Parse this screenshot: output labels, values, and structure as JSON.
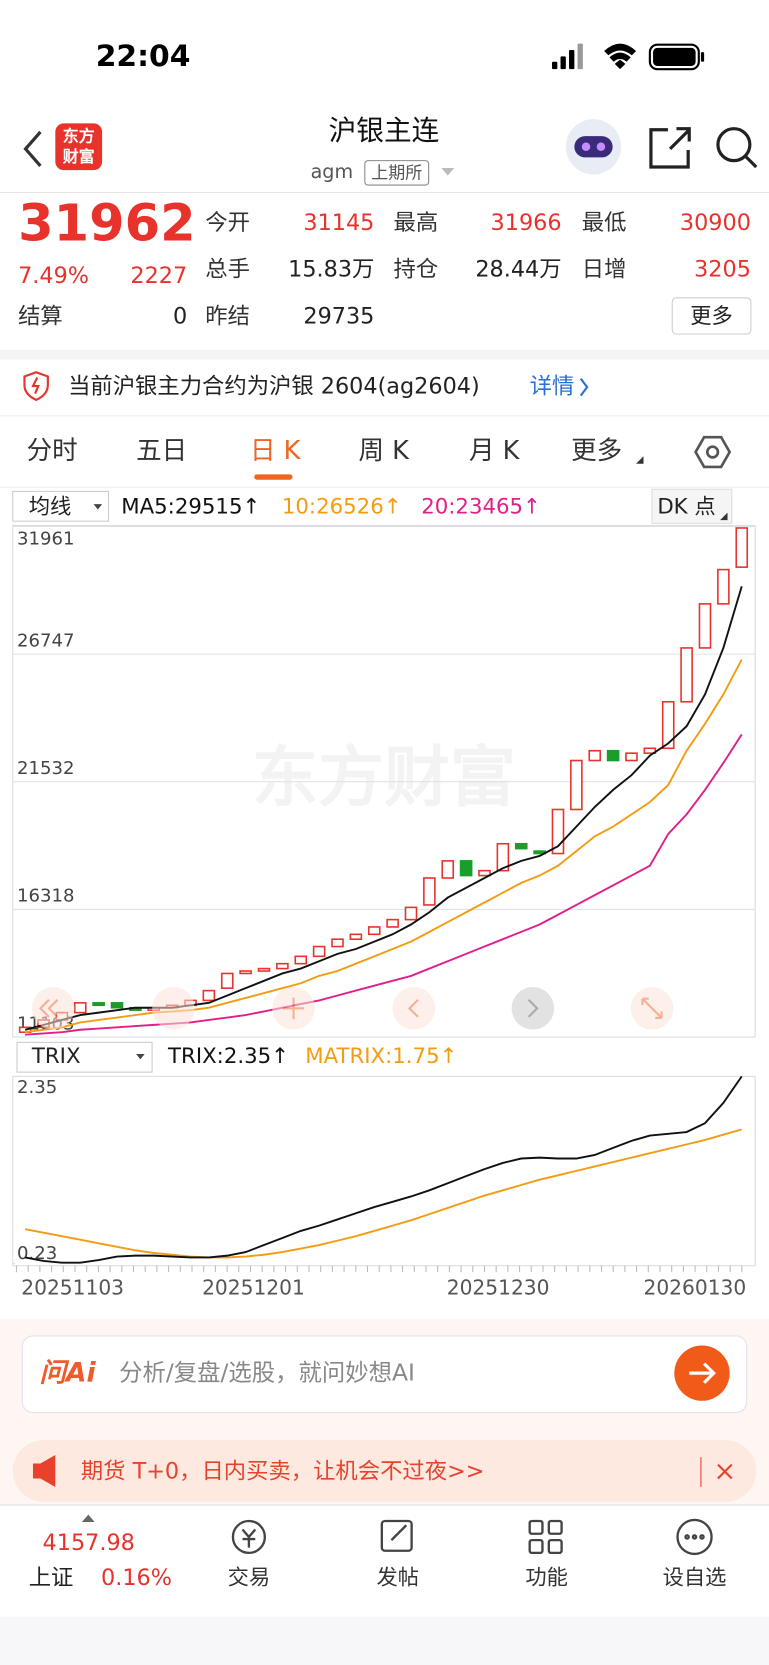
{
  "status": {
    "time": "22:04"
  },
  "header": {
    "logo_top": "东方",
    "logo_bottom": "财富",
    "title": "沪银主连",
    "code": "agm",
    "exchange": "上期所"
  },
  "quote": {
    "price": "31962",
    "change_pct": "7.49%",
    "change": "2227",
    "fields": [
      {
        "label": "今开",
        "value": "31145"
      },
      {
        "label": "最高",
        "value": "31966"
      },
      {
        "label": "最低",
        "value": "30900"
      },
      {
        "label": "总手",
        "value": "15.83万"
      },
      {
        "label": "持仓",
        "value": "28.44万"
      },
      {
        "label": "日增",
        "value": "3205"
      },
      {
        "label": "结算",
        "value": "0"
      },
      {
        "label": "昨结",
        "value": "29735"
      }
    ],
    "more": "更多"
  },
  "notice": {
    "text": "当前沪银主力合约为沪银 2604(ag2604)",
    "link": "详情"
  },
  "tabs": {
    "items": [
      "分时",
      "五日",
      "日 K",
      "周 K",
      "月 K",
      "更多"
    ],
    "active": 2
  },
  "indicator": {
    "selector": "均线",
    "ma5": "MA5:29515↑",
    "ma10": "10:26526↑",
    "ma20": "20:23465↑",
    "dk": "DK 点"
  },
  "watermark": "东方财富",
  "kline": {
    "ylim": [
      11103,
      31961
    ],
    "yticks": [
      31961,
      26747,
      21532,
      16318,
      11103
    ],
    "open": [
      11300,
      11500,
      11800,
      12100,
      12500,
      12500,
      12300,
      12200,
      12300,
      12400,
      12600,
      13100,
      13700,
      13800,
      13900,
      14100,
      14400,
      14800,
      15100,
      15300,
      15600,
      15900,
      16500,
      17600,
      18300,
      17700,
      17900,
      19000,
      18700,
      18600,
      20400,
      22400,
      22800,
      22400,
      22700,
      22900,
      24800,
      27000,
      28800,
      30300
    ],
    "close": [
      11500,
      11800,
      12100,
      12500,
      12400,
      12300,
      12200,
      12300,
      12400,
      12600,
      13000,
      13700,
      13800,
      13900,
      14100,
      14400,
      14800,
      15100,
      15300,
      15600,
      15900,
      16400,
      17600,
      18300,
      17700,
      17900,
      19000,
      18800,
      18600,
      20400,
      22400,
      22800,
      22400,
      22700,
      22900,
      24800,
      27000,
      28800,
      30200,
      31900
    ],
    "ma5": [
      11400,
      11600,
      11800,
      12000,
      12100,
      12200,
      12300,
      12300,
      12300,
      12400,
      12500,
      12800,
      13100,
      13400,
      13700,
      13900,
      14200,
      14500,
      14700,
      15000,
      15300,
      15700,
      16200,
      16800,
      17200,
      17600,
      18000,
      18300,
      18500,
      18900,
      19700,
      20500,
      21200,
      21800,
      22600,
      23100,
      23800,
      25100,
      27000,
      29515
    ],
    "ma10": [
      11300,
      11400,
      11500,
      11700,
      11800,
      11900,
      12000,
      12100,
      12150,
      12200,
      12300,
      12500,
      12700,
      12900,
      13100,
      13300,
      13600,
      13800,
      14100,
      14400,
      14700,
      15000,
      15400,
      15800,
      16200,
      16600,
      17000,
      17400,
      17700,
      18100,
      18700,
      19300,
      19700,
      20200,
      20700,
      21400,
      22800,
      23900,
      25100,
      26526
    ],
    "ma20": [
      11200,
      11250,
      11300,
      11400,
      11450,
      11500,
      11550,
      11600,
      11650,
      11700,
      11800,
      11900,
      12000,
      12150,
      12300,
      12450,
      12600,
      12800,
      13000,
      13200,
      13400,
      13600,
      13900,
      14200,
      14500,
      14800,
      15100,
      15400,
      15700,
      16100,
      16500,
      16900,
      17300,
      17700,
      18100,
      19400,
      20200,
      21200,
      22300,
      23465
    ]
  },
  "trix": {
    "selector": "TRIX",
    "trix_label": "TRIX:2.35↑",
    "matrix_label": "MATRIX:1.75↑",
    "ylim": [
      0.23,
      2.35
    ],
    "yticks": [
      2.35,
      0.23
    ],
    "trix": [
      0.3,
      0.26,
      0.24,
      0.24,
      0.27,
      0.31,
      0.32,
      0.32,
      0.31,
      0.3,
      0.3,
      0.32,
      0.36,
      0.44,
      0.52,
      0.6,
      0.66,
      0.73,
      0.8,
      0.87,
      0.93,
      0.99,
      1.06,
      1.14,
      1.22,
      1.3,
      1.37,
      1.42,
      1.43,
      1.42,
      1.42,
      1.46,
      1.54,
      1.62,
      1.68,
      1.7,
      1.72,
      1.82,
      2.05,
      2.35
    ],
    "matrix": [
      0.62,
      0.58,
      0.54,
      0.5,
      0.46,
      0.42,
      0.38,
      0.35,
      0.33,
      0.31,
      0.3,
      0.3,
      0.31,
      0.33,
      0.36,
      0.4,
      0.44,
      0.49,
      0.54,
      0.6,
      0.66,
      0.72,
      0.79,
      0.86,
      0.93,
      1.0,
      1.06,
      1.12,
      1.18,
      1.23,
      1.28,
      1.33,
      1.38,
      1.43,
      1.48,
      1.53,
      1.58,
      1.63,
      1.69,
      1.75
    ]
  },
  "dates": [
    "20251103",
    "20251201",
    "20251230",
    "20260130"
  ],
  "ai": {
    "brand": "问Ai",
    "placeholder": "分析/复盘/选股，就问妙想AI"
  },
  "banner": {
    "text": "期货 T+0，日内买卖，让机会不过夜>>"
  },
  "bottom_nav": {
    "index_value": "4157.98",
    "index_name": "上证",
    "index_pct": "0.16%",
    "items": [
      "交易",
      "发帖",
      "功能",
      "设自选"
    ]
  }
}
